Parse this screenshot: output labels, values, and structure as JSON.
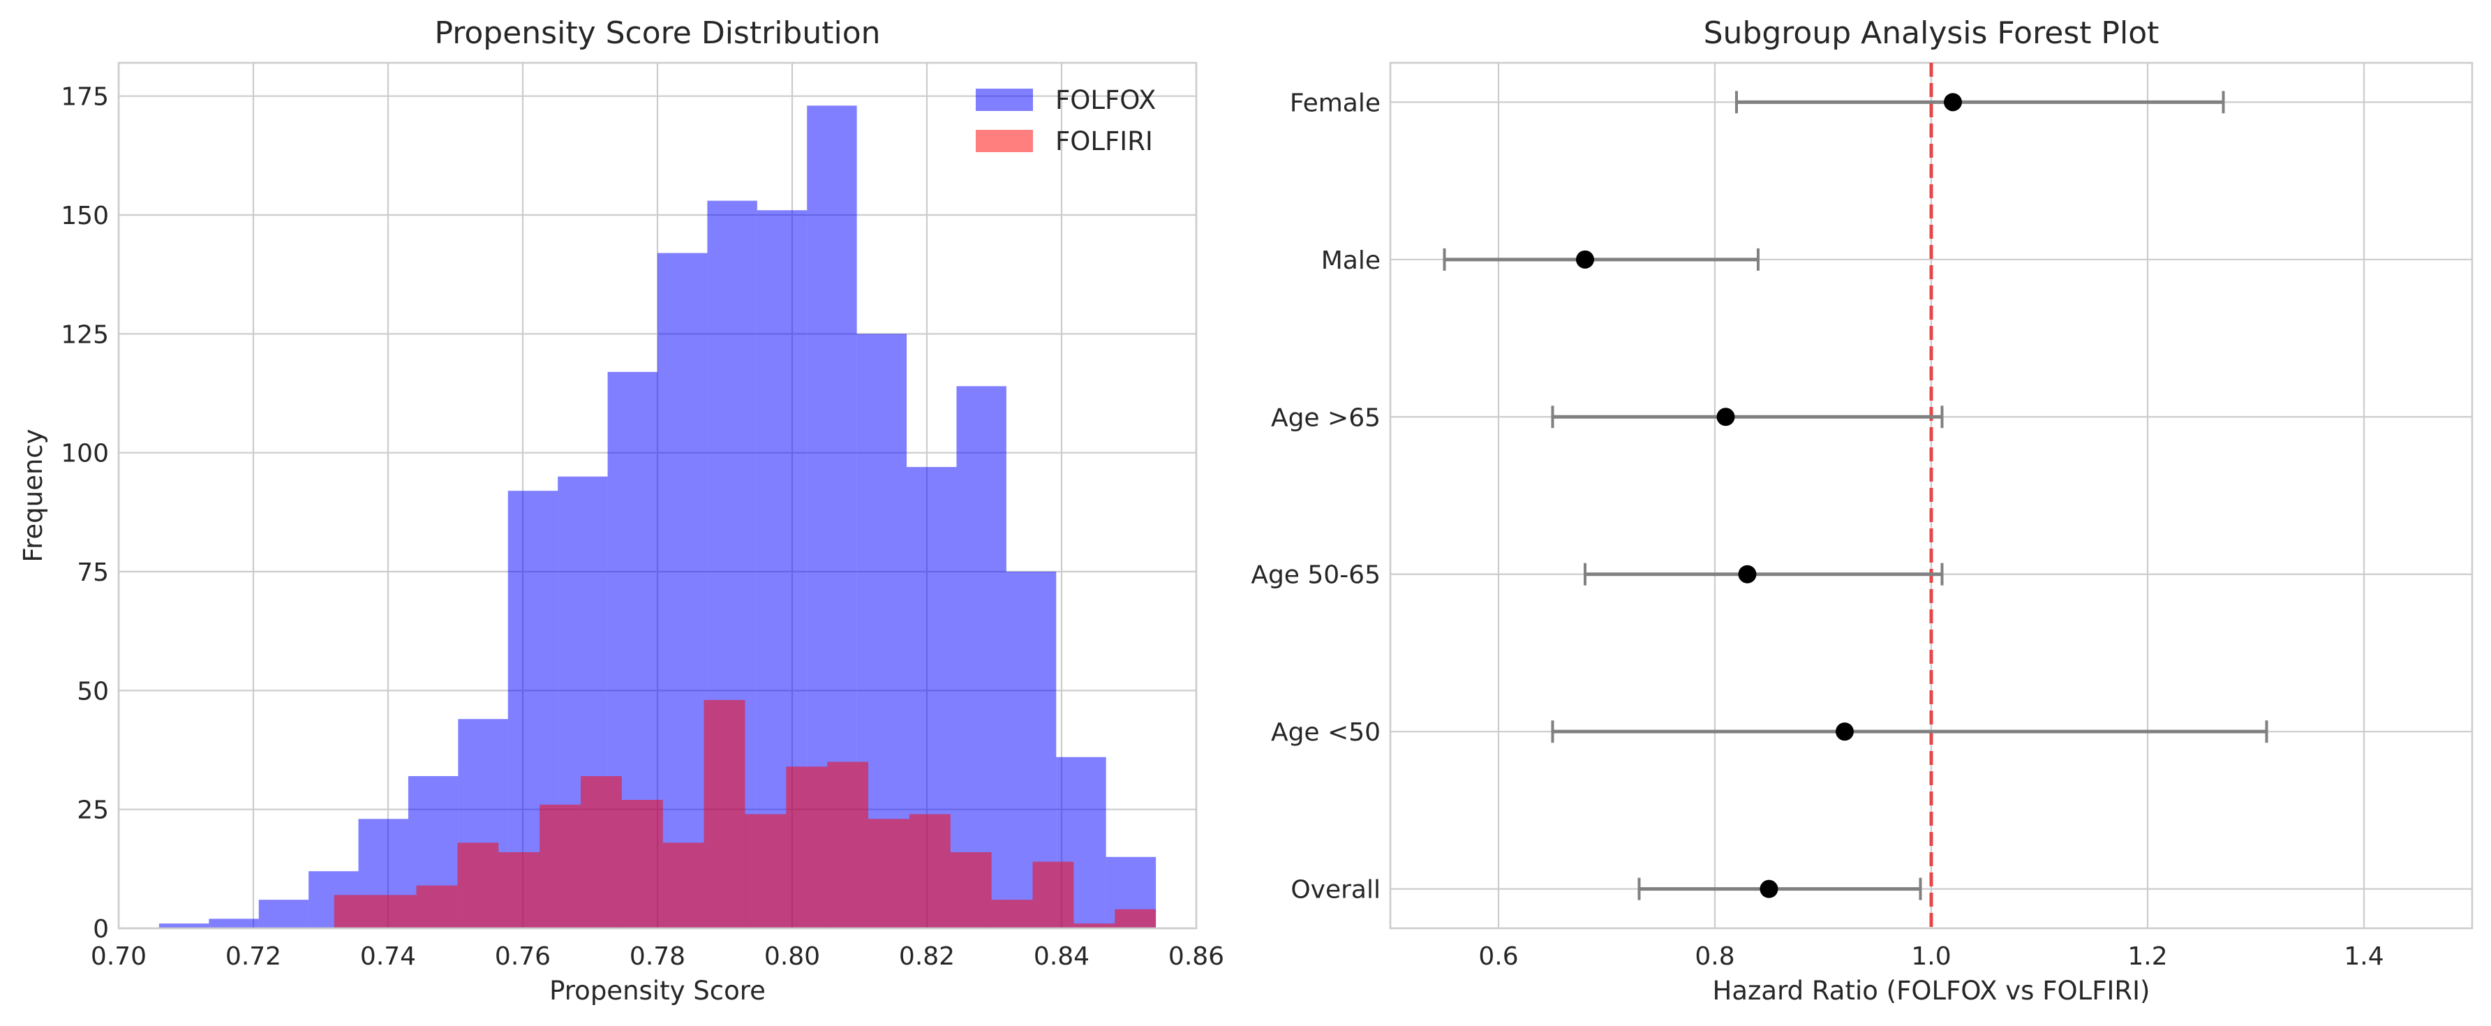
{
  "colors": {
    "folfox": "#0000ff",
    "folfiri": "#ff0000",
    "errorbar": "#808080",
    "point": "#000000",
    "refline": "#e8474a"
  },
  "chart_data": [
    {
      "type": "bar",
      "subtype": "histogram-overlay",
      "title": "Propensity Score Distribution",
      "xlabel": "Propensity Score",
      "ylabel": "Frequency",
      "xlim": [
        0.7,
        0.86
      ],
      "ylim": [
        0,
        182
      ],
      "xticks": [
        "0.70",
        "0.72",
        "0.74",
        "0.76",
        "0.78",
        "0.80",
        "0.82",
        "0.84",
        "0.86"
      ],
      "yticks": [
        "0",
        "25",
        "50",
        "75",
        "100",
        "125",
        "150",
        "175"
      ],
      "grid": true,
      "legend": {
        "position": "top-right",
        "entries": [
          "FOLFOX",
          "FOLFIRI"
        ]
      },
      "series": [
        {
          "name": "FOLFOX",
          "color": "#0000ff",
          "alpha": 0.5,
          "bin_edges": [
            0.706,
            0.7134,
            0.7208,
            0.7282,
            0.7356,
            0.743,
            0.7504,
            0.7578,
            0.7652,
            0.7726,
            0.78,
            0.7874,
            0.7948,
            0.8022,
            0.8096,
            0.817,
            0.8244,
            0.8318,
            0.8392,
            0.8466,
            0.854
          ],
          "values": [
            1,
            2,
            6,
            12,
            23,
            32,
            44,
            92,
            95,
            117,
            142,
            153,
            151,
            173,
            125,
            97,
            114,
            75,
            36,
            15
          ]
        },
        {
          "name": "FOLFIRI",
          "color": "#ff0000",
          "alpha": 0.5,
          "bin_edges": [
            0.732,
            0.7381,
            0.7442,
            0.7503,
            0.7564,
            0.7625,
            0.7686,
            0.7747,
            0.7808,
            0.7869,
            0.793,
            0.7991,
            0.8052,
            0.8113,
            0.8174,
            0.8235,
            0.8296,
            0.8357,
            0.8418,
            0.8479,
            0.854
          ],
          "values": [
            7,
            7,
            9,
            18,
            16,
            26,
            32,
            27,
            18,
            48,
            24,
            34,
            35,
            23,
            24,
            16,
            6,
            14,
            1,
            4
          ]
        }
      ]
    },
    {
      "type": "scatter",
      "subtype": "forest-plot",
      "title": "Subgroup Analysis Forest Plot",
      "xlabel": "Hazard Ratio (FOLFOX vs FOLFIRI)",
      "ylabel": "",
      "xlim": [
        0.5,
        1.5
      ],
      "xticks": [
        "0.6",
        "0.8",
        "1.0",
        "1.2",
        "1.4"
      ],
      "reference_line": 1.0,
      "grid": true,
      "categories": [
        "Female",
        "Male",
        "Age >65",
        "Age 50-65",
        "Age <50",
        "Overall"
      ],
      "estimates": [
        1.02,
        0.68,
        0.81,
        0.83,
        0.92,
        0.85
      ],
      "ci_lower": [
        0.82,
        0.55,
        0.65,
        0.68,
        0.65,
        0.73
      ],
      "ci_upper": [
        1.27,
        0.84,
        1.01,
        1.01,
        1.31,
        0.99
      ]
    }
  ]
}
